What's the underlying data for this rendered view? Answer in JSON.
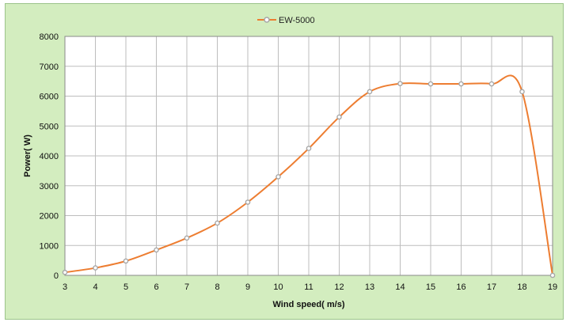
{
  "chart_data": {
    "type": "line",
    "title": "",
    "xlabel": "Wind speed( m/s)",
    "ylabel": "Power( W)",
    "xlim": [
      3,
      19
    ],
    "ylim": [
      0,
      8000
    ],
    "x_ticks": [
      3,
      4,
      5,
      6,
      7,
      8,
      9,
      10,
      11,
      12,
      13,
      14,
      15,
      16,
      17,
      18,
      19
    ],
    "y_ticks": [
      0,
      1000,
      2000,
      3000,
      4000,
      5000,
      6000,
      7000,
      8000
    ],
    "grid": true,
    "legend": "top-center",
    "background_color": "#d3edbf",
    "plot_area_color": "#ffffff",
    "grid_color": "#bdbdbd",
    "series": [
      {
        "name": "EW-5000",
        "line_color": "#ed7d31",
        "marker_color": "#a6a6a6",
        "x": [
          3,
          4,
          5,
          6,
          7,
          8,
          9,
          10,
          11,
          12,
          13,
          14,
          15,
          16,
          17,
          18,
          19
        ],
        "y": [
          100,
          250,
          480,
          850,
          1250,
          1750,
          2450,
          3300,
          4250,
          5300,
          6150,
          6420,
          6410,
          6410,
          6410,
          6150,
          0
        ]
      }
    ]
  }
}
